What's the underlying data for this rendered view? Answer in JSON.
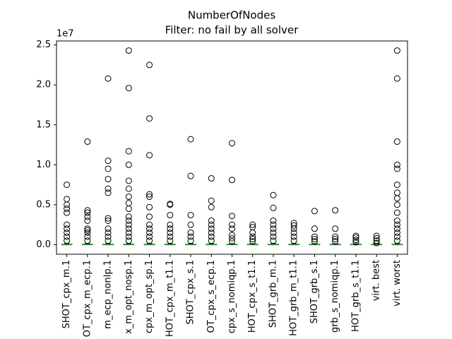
{
  "chart_data": {
    "type": "box",
    "title": "NumberOfNodes",
    "subtitle": "Filter: no fail by all solver",
    "y_offset_label": "1e7",
    "categories": [
      "SHOT_cpx_m.1",
      "OT_cpx_m_ecp.1",
      "m_ecp_nonlp.1",
      "x_m_opt_nosp.1",
      "cpx_m_opt_sp.1",
      "HOT_cpx_m_t1.1",
      "SHOT_cpx_s.1",
      "OT_cpx_s_ecp.1",
      "cpx_s_nomiqp.1",
      "HOT_cpx_s_t1.1",
      "SHOT_grb_m.1",
      "HOT_grb_m_t1.1",
      "SHOT_grb_s.1",
      "grb_s_nomiqp.1",
      "HOT_grb_s_t1.1",
      "virt. best",
      "virt. worst"
    ],
    "whisker_low": [
      0,
      0,
      0,
      0,
      0,
      0,
      0,
      0,
      0,
      0,
      0,
      0,
      0,
      0,
      0,
      0,
      0
    ],
    "q1": [
      0,
      0,
      0,
      0,
      0,
      0,
      0,
      0,
      0,
      0,
      0,
      0,
      0,
      0,
      0,
      0,
      0
    ],
    "median": [
      0,
      0,
      0,
      0,
      0,
      0,
      0,
      0,
      0,
      0,
      0,
      0,
      0,
      0,
      0,
      0,
      0
    ],
    "q3": [
      0.005,
      0.005,
      0.005,
      0.005,
      0.005,
      0.005,
      0.005,
      0.005,
      0.005,
      0.005,
      0.005,
      0.005,
      0.005,
      0.005,
      0.005,
      0.005,
      0.005
    ],
    "whisker_high": [
      0.012,
      0.012,
      0.012,
      0.012,
      0.012,
      0.012,
      0.012,
      0.012,
      0.012,
      0.012,
      0.012,
      0.012,
      0.012,
      0.012,
      0.012,
      0.012,
      0.012
    ],
    "outliers": [
      [
        0.75,
        0.57,
        0.5,
        0.45,
        0.4,
        0.25,
        0.2,
        0.15,
        0.1,
        0.05
      ],
      [
        1.29,
        0.43,
        0.4,
        0.35,
        0.3,
        0.2,
        0.18,
        0.15,
        0.1,
        0.05
      ],
      [
        2.08,
        1.05,
        0.95,
        0.82,
        0.7,
        0.65,
        0.33,
        0.3,
        0.2,
        0.15,
        0.1,
        0.05
      ],
      [
        2.43,
        1.96,
        1.17,
        1.0,
        0.8,
        0.7,
        0.6,
        0.52,
        0.45,
        0.35,
        0.3,
        0.25,
        0.2,
        0.15,
        0.1,
        0.05
      ],
      [
        2.25,
        1.58,
        1.12,
        0.63,
        0.6,
        0.47,
        0.35,
        0.25,
        0.2,
        0.15,
        0.1,
        0.05
      ],
      [
        0.51,
        0.5,
        0.37,
        0.25,
        0.2,
        0.15,
        0.1,
        0.05
      ],
      [
        1.32,
        0.86,
        0.37,
        0.25,
        0.15,
        0.1,
        0.05
      ],
      [
        0.83,
        0.55,
        0.47,
        0.3,
        0.25,
        0.2,
        0.15,
        0.1,
        0.05
      ],
      [
        1.27,
        0.81,
        0.36,
        0.25,
        0.2,
        0.12,
        0.08,
        0.04
      ],
      [
        0.25,
        0.22,
        0.15,
        0.1,
        0.07,
        0.04
      ],
      [
        0.62,
        0.46,
        0.3,
        0.25,
        0.2,
        0.15,
        0.1,
        0.05
      ],
      [
        0.27,
        0.24,
        0.2,
        0.15,
        0.1,
        0.05
      ],
      [
        0.42,
        0.2,
        0.1,
        0.07,
        0.04
      ],
      [
        0.43,
        0.2,
        0.1,
        0.07,
        0.04
      ],
      [
        0.11,
        0.09,
        0.06,
        0.03
      ],
      [
        0.11,
        0.08,
        0.05,
        0.02
      ],
      [
        2.43,
        2.08,
        1.29,
        1.0,
        0.95,
        0.75,
        0.65,
        0.58,
        0.5,
        0.4,
        0.3,
        0.25,
        0.2,
        0.15,
        0.1,
        0.05
      ]
    ],
    "box_color": "#000000",
    "median_color": "#2ca02c",
    "ylim": [
      -0.12,
      2.55
    ],
    "yticks": [
      {
        "value": 0,
        "label": "0.0"
      },
      0.5,
      {
        "value": 1,
        "label": "1.0"
      },
      1.5,
      {
        "value": 2,
        "label": "2.0"
      },
      2.5
    ],
    "grid": false
  }
}
